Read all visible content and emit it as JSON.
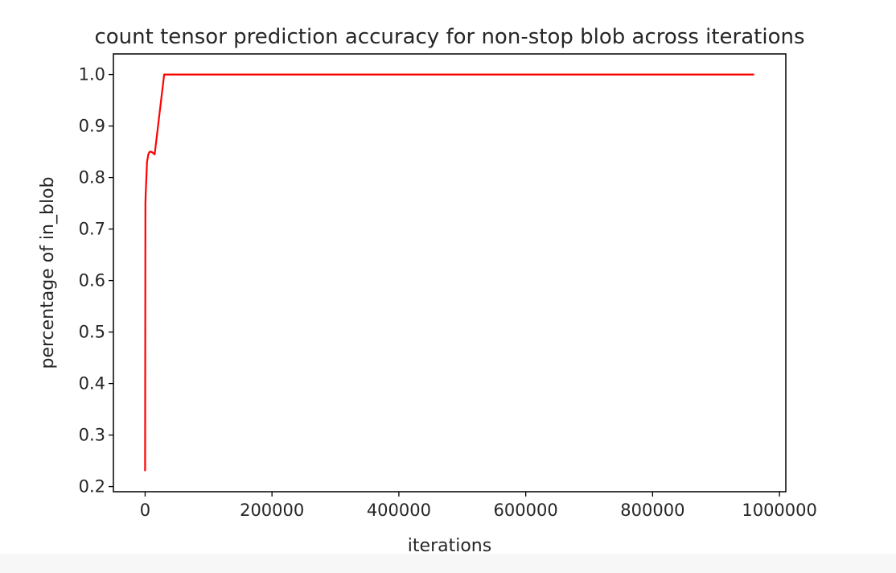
{
  "chart_data": {
    "type": "line",
    "title": "count tensor prediction accuracy for non-stop blob across iterations",
    "xlabel": "iterations",
    "ylabel": "percentage of in_blob",
    "xlim": [
      -50000,
      1010000
    ],
    "ylim": [
      0.19,
      1.04
    ],
    "xticks": [
      0,
      200000,
      400000,
      600000,
      800000,
      1000000
    ],
    "xtick_labels": [
      "0",
      "200000",
      "400000",
      "600000",
      "800000",
      "1000000"
    ],
    "yticks": [
      0.2,
      0.3,
      0.4,
      0.5,
      0.6,
      0.7,
      0.8,
      0.9,
      1.0
    ],
    "ytick_labels": [
      "0.2",
      "0.3",
      "0.4",
      "0.5",
      "0.6",
      "0.7",
      "0.8",
      "0.9",
      "1.0"
    ],
    "grid": false,
    "series": [
      {
        "color": "#ff0000",
        "x": [
          0,
          500,
          1000,
          2000,
          3000,
          5000,
          7000,
          10000,
          15000,
          30000,
          960000
        ],
        "y": [
          0.23,
          0.75,
          0.77,
          0.8,
          0.83,
          0.845,
          0.85,
          0.85,
          0.845,
          1.0,
          1.0
        ]
      }
    ]
  }
}
